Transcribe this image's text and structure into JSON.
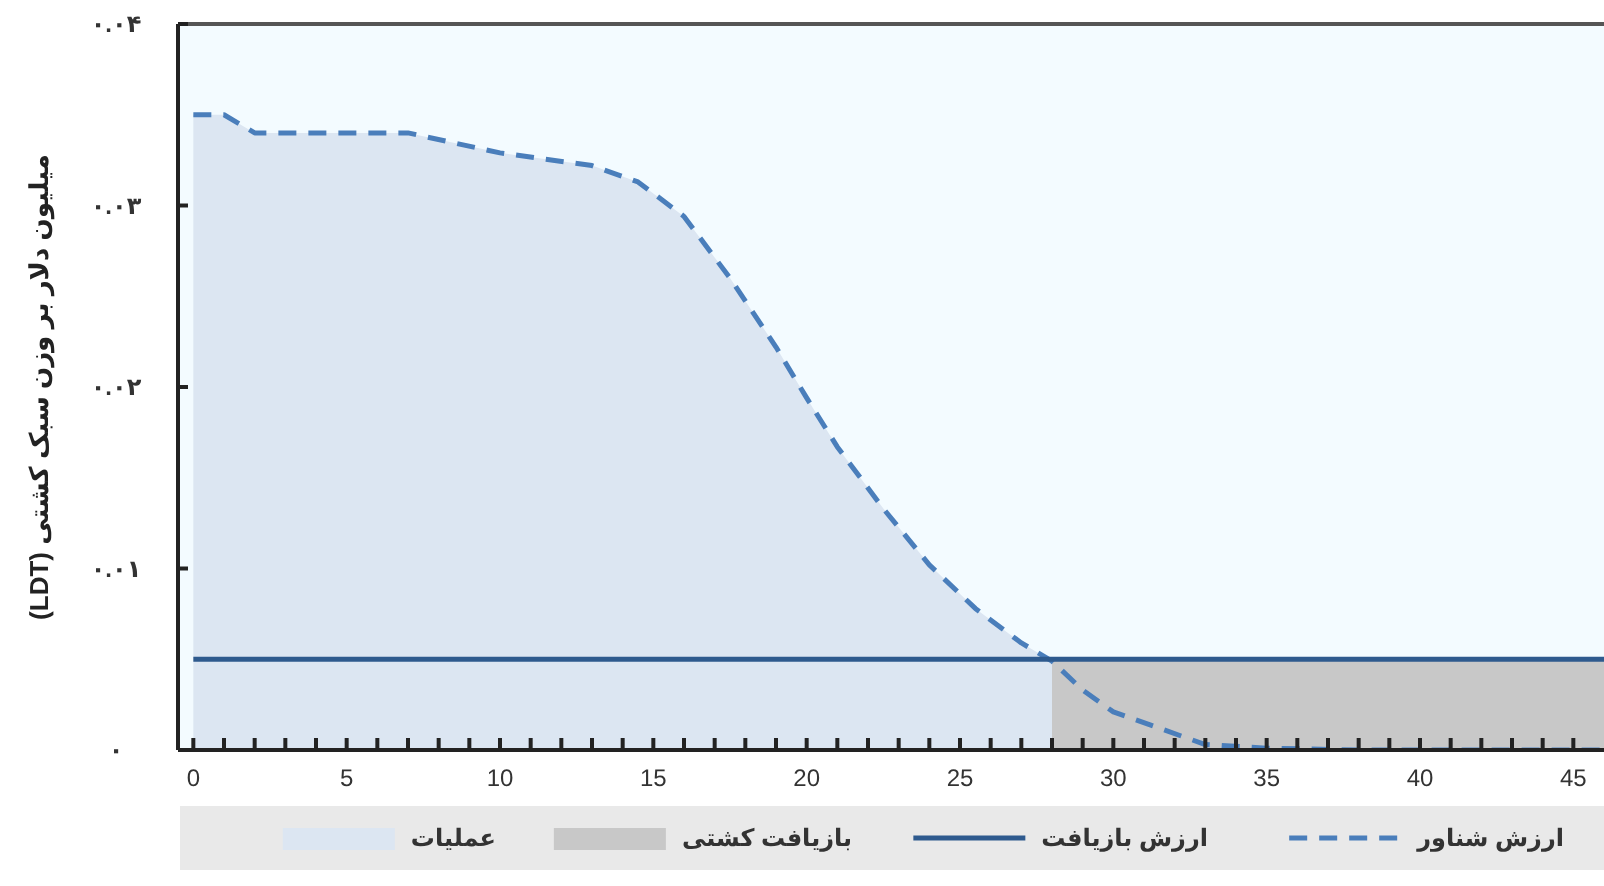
{
  "chart_data": {
    "type": "line",
    "ylabel": "میلیون دلار بر وزن سبک کشتی (LDT)",
    "xlim": [
      -0.5,
      46
    ],
    "ylim": [
      0,
      0.04
    ],
    "xticks": [
      0,
      {
        "value": 1,
        "label": null
      },
      {
        "value": 2,
        "label": null
      },
      {
        "value": 3,
        "label": null
      },
      {
        "value": 4,
        "label": null
      },
      5,
      {
        "value": 6,
        "label": null
      },
      {
        "value": 7,
        "label": null
      },
      {
        "value": 8,
        "label": null
      },
      {
        "value": 9,
        "label": null
      },
      10,
      {
        "value": 11,
        "label": null
      },
      {
        "value": 12,
        "label": null
      },
      {
        "value": 13,
        "label": null
      },
      {
        "value": 14,
        "label": null
      },
      15,
      {
        "value": 16,
        "label": null
      },
      {
        "value": 17,
        "label": null
      },
      {
        "value": 18,
        "label": null
      },
      {
        "value": 19,
        "label": null
      },
      20,
      {
        "value": 21,
        "label": null
      },
      {
        "value": 22,
        "label": null
      },
      {
        "value": 23,
        "label": null
      },
      {
        "value": 24,
        "label": null
      },
      25,
      {
        "value": 26,
        "label": null
      },
      {
        "value": 27,
        "label": null
      },
      {
        "value": 28,
        "label": null
      },
      {
        "value": 29,
        "label": null
      },
      30,
      {
        "value": 31,
        "label": null
      },
      {
        "value": 32,
        "label": null
      },
      {
        "value": 33,
        "label": null
      },
      {
        "value": 34,
        "label": null
      },
      35,
      {
        "value": 36,
        "label": null
      },
      {
        "value": 37,
        "label": null
      },
      {
        "value": 38,
        "label": null
      },
      {
        "value": 39,
        "label": null
      },
      40,
      {
        "value": 41,
        "label": null
      },
      {
        "value": 42,
        "label": null
      },
      {
        "value": 43,
        "label": null
      },
      {
        "value": 44,
        "label": null
      },
      45
    ],
    "yticks": [
      {
        "value": 0,
        "label": "۰"
      },
      {
        "value": 0.01,
        "label": "۰.۰۱"
      },
      {
        "value": 0.02,
        "label": "۰.۰۲"
      },
      {
        "value": 0.03,
        "label": "۰.۰۳"
      },
      {
        "value": 0.04,
        "label": "۰.۰۴"
      }
    ],
    "grid": false,
    "legend": "bottom",
    "series": [
      {
        "name": "ارزش شناور",
        "type": "line",
        "line_style": "dashed",
        "color": "#4a7ebb",
        "x": [
          0,
          1,
          2,
          4,
          7,
          10,
          13,
          14.5,
          16,
          17.5,
          19,
          20,
          21,
          22.5,
          24,
          25.5,
          27,
          28,
          29,
          30,
          31.5,
          33,
          35,
          38,
          41,
          45,
          46
        ],
        "values": [
          0.035,
          0.035,
          0.034,
          0.034,
          0.034,
          0.0329,
          0.0322,
          0.0313,
          0.0294,
          0.026,
          0.0222,
          0.0194,
          0.0167,
          0.0133,
          0.0102,
          0.0078,
          0.0059,
          0.0049,
          0.0033,
          0.0021,
          0.0012,
          0.0003,
          0.0001,
          0,
          0,
          0,
          0
        ]
      },
      {
        "name": "ارزش بازیافت",
        "type": "line",
        "line_style": "solid",
        "color": "#2e5a8e",
        "x": [
          0,
          46
        ],
        "values": [
          0.005,
          0.005
        ]
      },
      {
        "name": "بازیافت کشتی",
        "type": "area",
        "color": "#c8c8c8",
        "x": [
          28,
          46
        ],
        "values": [
          0.005,
          0.005
        ]
      },
      {
        "name": "عملیات",
        "type": "area",
        "color": "#dce6f2",
        "x": [
          0,
          1,
          2,
          4,
          7,
          10,
          13,
          14.5,
          16,
          17.5,
          19,
          20,
          21,
          22.5,
          24,
          25.5,
          27,
          28
        ],
        "values": [
          0.035,
          0.035,
          0.034,
          0.034,
          0.034,
          0.0329,
          0.0322,
          0.0313,
          0.0294,
          0.026,
          0.0222,
          0.0194,
          0.0167,
          0.0133,
          0.0102,
          0.0078,
          0.0059,
          0.0049
        ]
      }
    ]
  }
}
